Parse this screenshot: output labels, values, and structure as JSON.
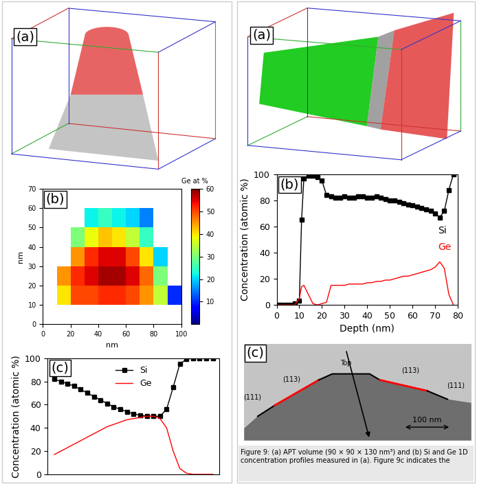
{
  "chart_data": [
    {
      "type": "heatmap",
      "label": "(b)",
      "xlabel": "nm",
      "ylabel": "nm",
      "xlim": [
        0,
        100
      ],
      "ylim": [
        0,
        70
      ],
      "xticks": [
        0,
        20,
        40,
        60,
        80,
        100
      ],
      "yticks": [
        0,
        10,
        20,
        30,
        40,
        50,
        60,
        70
      ],
      "x_edges": [
        0,
        10,
        20,
        30,
        40,
        50,
        60,
        70,
        80,
        90,
        100
      ],
      "y_edges": [
        0,
        10,
        20,
        30,
        40,
        50,
        60,
        70
      ],
      "cells": [
        [
          null,
          null,
          null,
          null,
          null,
          null,
          null,
          null,
          null,
          null
        ],
        [
          null,
          40,
          50,
          50,
          52,
          52,
          50,
          45,
          35,
          10
        ],
        [
          null,
          45,
          52,
          55,
          58,
          58,
          55,
          48,
          30,
          null
        ],
        [
          null,
          null,
          45,
          52,
          55,
          55,
          50,
          40,
          20,
          null
        ],
        [
          null,
          null,
          30,
          38,
          42,
          40,
          35,
          25,
          null,
          null
        ],
        [
          null,
          null,
          null,
          22,
          25,
          22,
          20,
          15,
          null,
          null
        ],
        [
          null,
          null,
          null,
          null,
          null,
          null,
          null,
          null,
          null,
          null
        ]
      ],
      "colorbar": {
        "title": "Ge at %",
        "range": [
          0,
          60
        ],
        "ticks": [
          10,
          20,
          30,
          40,
          50,
          60
        ]
      }
    },
    {
      "type": "line",
      "label": "(c)",
      "ylabel": "Concentration (atomic %)",
      "x": [
        1,
        2,
        3,
        4,
        5,
        6,
        7,
        8,
        9,
        10,
        11,
        12,
        13,
        14,
        15,
        16,
        17,
        18,
        19,
        20,
        21,
        22,
        23,
        24,
        25
      ],
      "xlim": [
        0,
        26
      ],
      "ylim": [
        0,
        100
      ],
      "yticks": [
        0,
        20,
        40,
        60,
        80,
        100
      ],
      "tick_labels": "y",
      "legend": "upper center",
      "series": [
        {
          "name": "Si",
          "color": "#000000",
          "marker": "square",
          "line_style": "solid",
          "values": [
            82,
            80,
            78,
            76,
            73,
            70,
            67,
            64,
            61,
            58,
            56,
            54,
            52,
            51,
            50,
            50,
            50,
            56,
            75,
            95,
            99,
            100,
            100,
            100,
            100
          ]
        },
        {
          "name": "Ge",
          "color": "#ff0000",
          "line_style": "solid",
          "values": [
            17,
            20,
            23,
            26,
            29,
            32,
            35,
            38,
            41,
            43,
            45,
            47,
            48,
            49,
            50,
            50,
            48,
            40,
            20,
            5,
            1,
            0,
            0,
            0,
            0
          ]
        }
      ]
    },
    {
      "type": "line",
      "label": "(b)",
      "xlabel": "Depth (nm)",
      "ylabel": "Concentration (atomic %)",
      "x": [
        0,
        2,
        4,
        6,
        8,
        10,
        11,
        12,
        14,
        16,
        18,
        20,
        22,
        24,
        26,
        28,
        30,
        32,
        34,
        36,
        38,
        40,
        42,
        44,
        46,
        48,
        50,
        52,
        54,
        56,
        58,
        60,
        62,
        64,
        66,
        68,
        70,
        72,
        74,
        76,
        78
      ],
      "xlim": [
        0,
        80
      ],
      "ylim": [
        0,
        100
      ],
      "xticks": [
        0,
        10,
        20,
        30,
        40,
        50,
        60,
        70,
        80
      ],
      "yticks": [
        0,
        20,
        40,
        60,
        80,
        100
      ],
      "series": [
        {
          "name": "Si",
          "color": "#000000",
          "marker": "square",
          "line_style": "solid",
          "values": [
            0,
            0,
            0,
            0,
            1,
            3,
            65,
            97,
            99,
            99,
            98,
            95,
            84,
            83,
            82,
            82,
            83,
            82,
            82,
            83,
            83,
            82,
            82,
            83,
            82,
            81,
            80,
            80,
            79,
            78,
            77,
            76,
            75,
            74,
            73,
            72,
            70,
            67,
            72,
            88,
            100
          ]
        },
        {
          "name": "Ge",
          "color": "#ff0000",
          "line_style": "solid",
          "values": [
            0,
            0,
            0,
            0,
            0,
            5,
            14,
            15,
            8,
            1,
            0,
            1,
            2,
            15,
            15,
            15,
            15,
            16,
            16,
            16,
            16,
            17,
            17,
            18,
            18,
            19,
            19,
            20,
            21,
            22,
            22,
            23,
            24,
            25,
            26,
            27,
            29,
            33,
            28,
            8,
            0
          ]
        }
      ]
    }
  ],
  "images": [
    {
      "type": "apt_volume",
      "label": "(a)"
    },
    {
      "type": "apt_volume",
      "label": "(a)"
    },
    {
      "type": "tem",
      "label": "(c)",
      "top": "Top",
      "facet_labels": [
        "(111)",
        "(113)",
        "(113)",
        "(111)"
      ],
      "scale_bar": "100 nm"
    }
  ],
  "caption": "Figure 9: (a) APT volume (90 × 90 × 130 nm³) and (b) Si and Ge 1D concentration profiles measured in (a). Figure 9c indicates the"
}
